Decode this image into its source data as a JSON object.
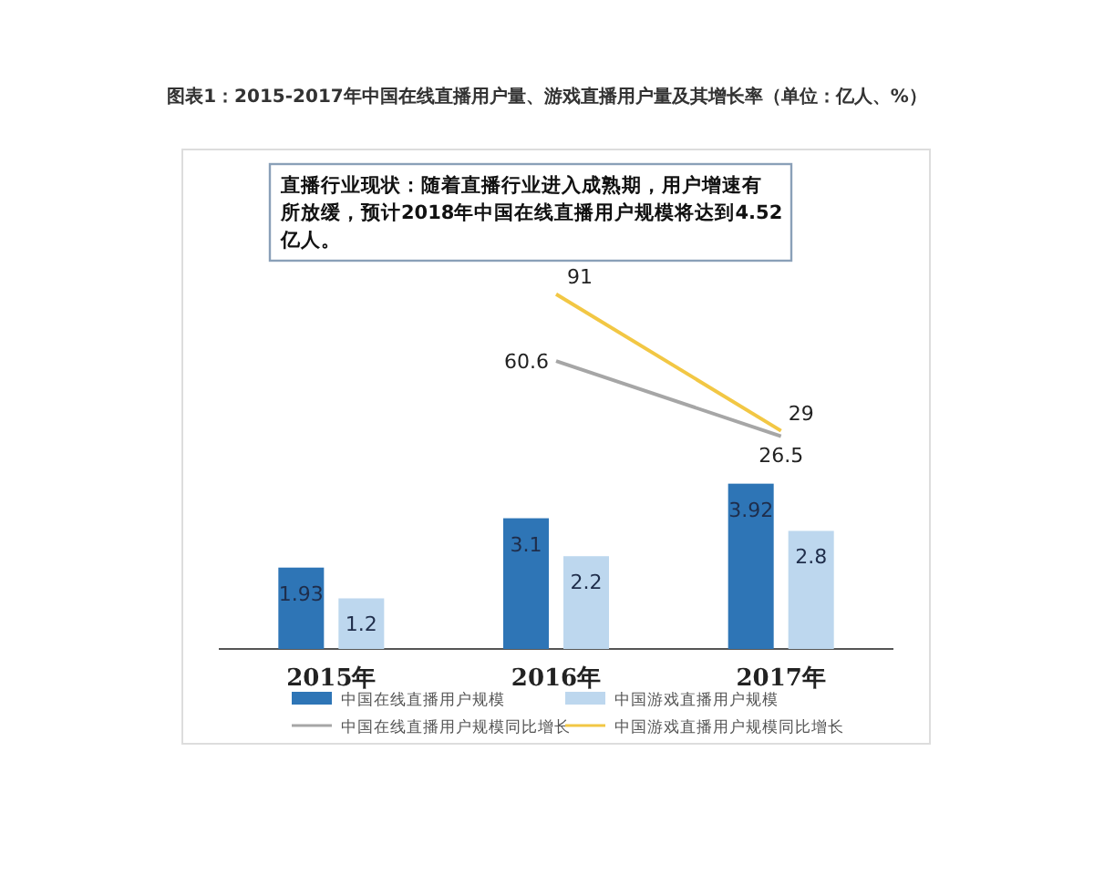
{
  "chart_data": {
    "type": "bar",
    "title": "图表1：2015-2017年中国在线直播用户量、游戏直播用户量及其增长率（单位：亿人、%）",
    "annotations": [
      "直播行业现状：随着直播行业进入成熟期，用户增速有所放缓，预计2018年中国在线直播用户规模将达到4.52亿人。"
    ],
    "categories": [
      "2015年",
      "2016年",
      "2017年"
    ],
    "series": [
      {
        "name": "中国在线直播用户规模",
        "color": "#2e75b6",
        "values": [
          1.93,
          3.1,
          3.92
        ]
      },
      {
        "name": "中国游戏直播用户规模",
        "color": "#bdd7ee",
        "values": [
          1.2,
          2.2,
          2.8
        ]
      },
      {
        "name": "中国在线直播用户规模同比增长",
        "color": "#a6a6a6",
        "type": "line",
        "axis": "y2",
        "values": [
          null,
          60.6,
          26.5
        ]
      },
      {
        "name": "中国游戏直播用户规模同比增长",
        "color": "#f2c744",
        "type": "line",
        "axis": "y2",
        "values": [
          null,
          91,
          29
        ]
      }
    ],
    "ylim": [
      0,
      11.5
    ],
    "y2lim": [
      -70,
      150
    ],
    "data_labels": true,
    "legend": "bottom",
    "tick_labels": "x"
  }
}
